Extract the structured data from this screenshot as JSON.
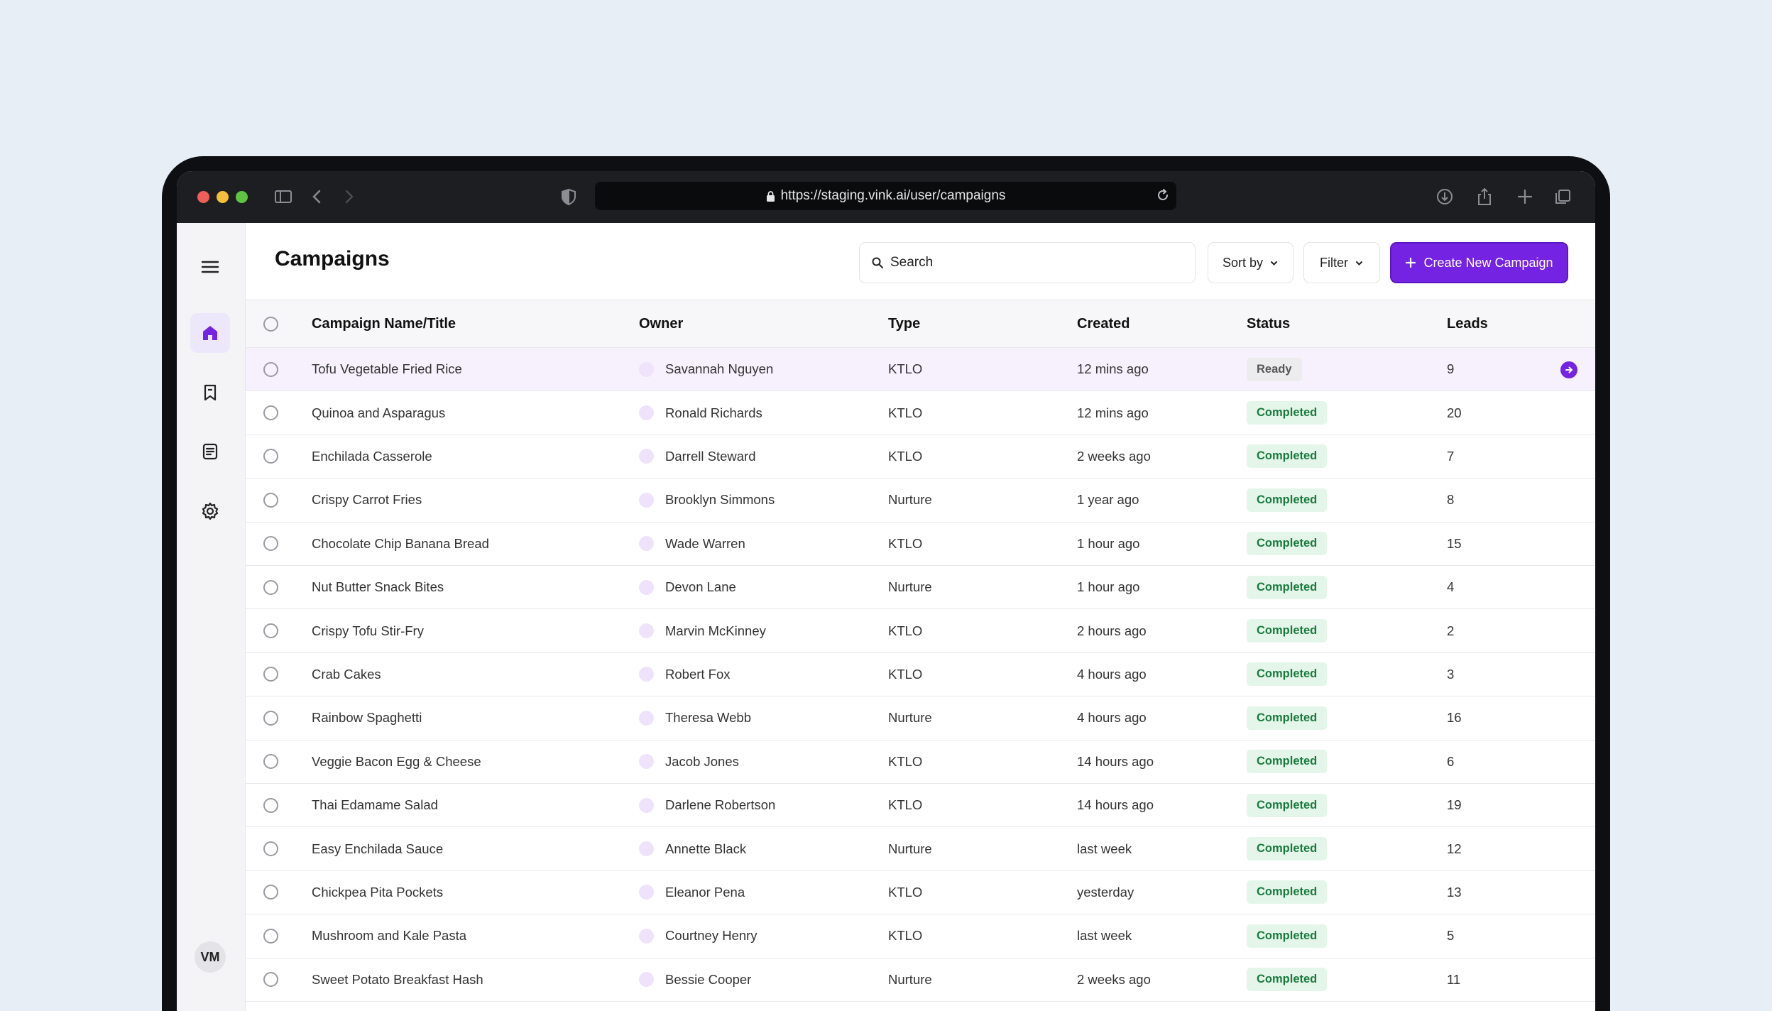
{
  "browser": {
    "url": "https://staging.vink.ai/user/campaigns"
  },
  "sidebar": {
    "avatar_initials": "VM"
  },
  "header": {
    "title": "Campaigns",
    "search_label": "Search",
    "sort_label": "Sort by",
    "filter_label": "Filter",
    "create_label": "Create New Campaign"
  },
  "colors": {
    "accent": "#7423e3",
    "completed_bg": "#e4f6ea",
    "completed_text": "#1a7a3e",
    "ready_bg": "#ececee"
  },
  "table": {
    "columns": [
      "Campaign Name/Title",
      "Owner",
      "Type",
      "Created",
      "Status",
      "Leads"
    ],
    "rows": [
      {
        "name": "Tofu Vegetable Fried Rice",
        "owner": "Savannah Nguyen",
        "type": "KTLO",
        "created": "12 mins ago",
        "status": "Ready",
        "leads": "9"
      },
      {
        "name": "Quinoa and Asparagus",
        "owner": "Ronald Richards",
        "type": "KTLO",
        "created": "12 mins ago",
        "status": "Completed",
        "leads": "20"
      },
      {
        "name": "Enchilada Casserole",
        "owner": "Darrell Steward",
        "type": "KTLO",
        "created": "2 weeks ago",
        "status": "Completed",
        "leads": "7"
      },
      {
        "name": "Crispy Carrot Fries",
        "owner": "Brooklyn Simmons",
        "type": "Nurture",
        "created": "1 year ago",
        "status": "Completed",
        "leads": "8"
      },
      {
        "name": "Chocolate Chip Banana Bread",
        "owner": "Wade Warren",
        "type": "KTLO",
        "created": "1 hour ago",
        "status": "Completed",
        "leads": "15"
      },
      {
        "name": "Nut Butter Snack Bites",
        "owner": "Devon Lane",
        "type": "Nurture",
        "created": "1 hour ago",
        "status": "Completed",
        "leads": "4"
      },
      {
        "name": "Crispy Tofu Stir-Fry",
        "owner": "Marvin McKinney",
        "type": "KTLO",
        "created": "2 hours ago",
        "status": "Completed",
        "leads": "2"
      },
      {
        "name": "Crab Cakes",
        "owner": "Robert Fox",
        "type": "KTLO",
        "created": "4 hours ago",
        "status": "Completed",
        "leads": "3"
      },
      {
        "name": "Rainbow Spaghetti",
        "owner": "Theresa Webb",
        "type": "Nurture",
        "created": "4 hours ago",
        "status": "Completed",
        "leads": "16"
      },
      {
        "name": "Veggie Bacon Egg & Cheese",
        "owner": "Jacob Jones",
        "type": "KTLO",
        "created": "14 hours ago",
        "status": "Completed",
        "leads": "6"
      },
      {
        "name": "Thai Edamame Salad",
        "owner": "Darlene Robertson",
        "type": "KTLO",
        "created": "14 hours ago",
        "status": "Completed",
        "leads": "19"
      },
      {
        "name": "Easy Enchilada Sauce",
        "owner": "Annette Black",
        "type": "Nurture",
        "created": "last week",
        "status": "Completed",
        "leads": "12"
      },
      {
        "name": "Chickpea Pita Pockets",
        "owner": "Eleanor Pena",
        "type": "KTLO",
        "created": "yesterday",
        "status": "Completed",
        "leads": "13"
      },
      {
        "name": "Mushroom and Kale Pasta",
        "owner": "Courtney Henry",
        "type": "KTLO",
        "created": "last week",
        "status": "Completed",
        "leads": "5"
      },
      {
        "name": "Sweet Potato Breakfast Hash",
        "owner": "Bessie Cooper",
        "type": "Nurture",
        "created": "2 weeks ago",
        "status": "Completed",
        "leads": "11"
      }
    ]
  }
}
